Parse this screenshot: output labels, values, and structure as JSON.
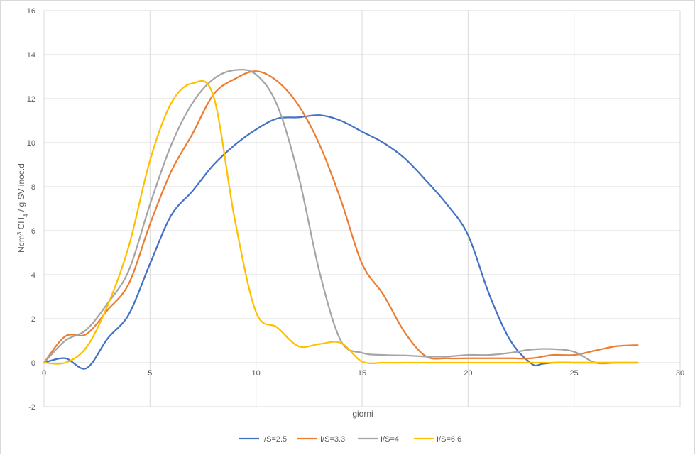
{
  "chart_data": {
    "type": "line",
    "xlabel": "giorni",
    "ylabel": {
      "prefix": "Ncm",
      "sup": "3",
      "mid": " CH",
      "sub": "4",
      "suffix": " / g SV inoc.d"
    },
    "xlim": [
      0,
      30
    ],
    "ylim": [
      -2,
      16
    ],
    "xticks": [
      0,
      5,
      10,
      15,
      20,
      25,
      30
    ],
    "yticks": [
      -2,
      0,
      2,
      4,
      6,
      8,
      10,
      12,
      14,
      16
    ],
    "grid": "vertical and horizontal major gridlines",
    "legend_position": "bottom",
    "series": [
      {
        "name": "I/S=2.5",
        "color": "#4472C4",
        "points": [
          [
            0,
            0
          ],
          [
            1,
            0.2
          ],
          [
            2,
            -0.25
          ],
          [
            3,
            1.1
          ],
          [
            4,
            2.2
          ],
          [
            5,
            4.5
          ],
          [
            6,
            6.7
          ],
          [
            7,
            7.8
          ],
          [
            8,
            9.0
          ],
          [
            9,
            9.9
          ],
          [
            10,
            10.6
          ],
          [
            11,
            11.1
          ],
          [
            12,
            11.15
          ],
          [
            13,
            11.25
          ],
          [
            14,
            11.0
          ],
          [
            15,
            10.5
          ],
          [
            16,
            10.0
          ],
          [
            17,
            9.3
          ],
          [
            18,
            8.3
          ],
          [
            19,
            7.2
          ],
          [
            20,
            5.8
          ],
          [
            21,
            3.1
          ],
          [
            22,
            1.0
          ],
          [
            23,
            -0.05
          ],
          [
            23.5,
            -0.05
          ],
          [
            24,
            0
          ],
          [
            25,
            0
          ],
          [
            26,
            0
          ],
          [
            27,
            0
          ],
          [
            28,
            0
          ]
        ]
      },
      {
        "name": "I/S=3.3",
        "color": "#ED7D31",
        "points": [
          [
            0,
            0
          ],
          [
            1,
            1.2
          ],
          [
            2,
            1.3
          ],
          [
            3,
            2.4
          ],
          [
            4,
            3.6
          ],
          [
            5,
            6.3
          ],
          [
            6,
            8.7
          ],
          [
            7,
            10.4
          ],
          [
            8,
            12.2
          ],
          [
            9,
            12.9
          ],
          [
            10,
            13.25
          ],
          [
            11,
            12.8
          ],
          [
            12,
            11.7
          ],
          [
            13,
            9.9
          ],
          [
            14,
            7.4
          ],
          [
            15,
            4.5
          ],
          [
            16,
            3.1
          ],
          [
            17,
            1.4
          ],
          [
            18,
            0.3
          ],
          [
            19,
            0.2
          ],
          [
            20,
            0.2
          ],
          [
            21,
            0.2
          ],
          [
            22,
            0.2
          ],
          [
            23,
            0.2
          ],
          [
            24,
            0.35
          ],
          [
            25,
            0.35
          ],
          [
            26,
            0.55
          ],
          [
            27,
            0.75
          ],
          [
            28,
            0.8
          ]
        ]
      },
      {
        "name": "I/S=4",
        "color": "#A5A5A5",
        "points": [
          [
            0,
            0
          ],
          [
            1,
            1.0
          ],
          [
            2,
            1.5
          ],
          [
            3,
            2.7
          ],
          [
            4,
            4.2
          ],
          [
            5,
            7.2
          ],
          [
            6,
            9.9
          ],
          [
            7,
            11.8
          ],
          [
            8,
            12.9
          ],
          [
            9,
            13.3
          ],
          [
            10,
            13.1
          ],
          [
            11,
            11.7
          ],
          [
            12,
            8.5
          ],
          [
            13,
            4.1
          ],
          [
            14,
            1.0
          ],
          [
            15,
            0.45
          ],
          [
            16,
            0.35
          ],
          [
            17,
            0.33
          ],
          [
            18,
            0.28
          ],
          [
            19,
            0.28
          ],
          [
            20,
            0.35
          ],
          [
            21,
            0.35
          ],
          [
            22,
            0.45
          ],
          [
            23,
            0.6
          ],
          [
            24,
            0.62
          ],
          [
            25,
            0.5
          ],
          [
            26,
            0
          ],
          [
            27,
            0
          ],
          [
            28,
            0
          ]
        ]
      },
      {
        "name": "I/S=6.6",
        "color": "#FFC000",
        "points": [
          [
            0,
            0
          ],
          [
            1,
            0.0
          ],
          [
            2,
            0.7
          ],
          [
            3,
            2.6
          ],
          [
            4,
            5.3
          ],
          [
            5,
            9.2
          ],
          [
            6,
            11.8
          ],
          [
            7,
            12.7
          ],
          [
            8,
            12.1
          ],
          [
            9,
            6.5
          ],
          [
            10,
            2.3
          ],
          [
            11,
            1.6
          ],
          [
            12,
            0.75
          ],
          [
            13,
            0.85
          ],
          [
            14,
            0.9
          ],
          [
            15,
            0.05
          ],
          [
            16,
            0
          ],
          [
            17,
            0
          ],
          [
            18,
            0
          ],
          [
            19,
            0
          ],
          [
            20,
            0
          ],
          [
            21,
            0
          ],
          [
            22,
            0
          ],
          [
            23,
            0
          ],
          [
            24,
            0
          ],
          [
            25,
            0
          ],
          [
            26,
            0
          ],
          [
            27,
            0
          ],
          [
            28,
            0
          ]
        ]
      }
    ]
  }
}
